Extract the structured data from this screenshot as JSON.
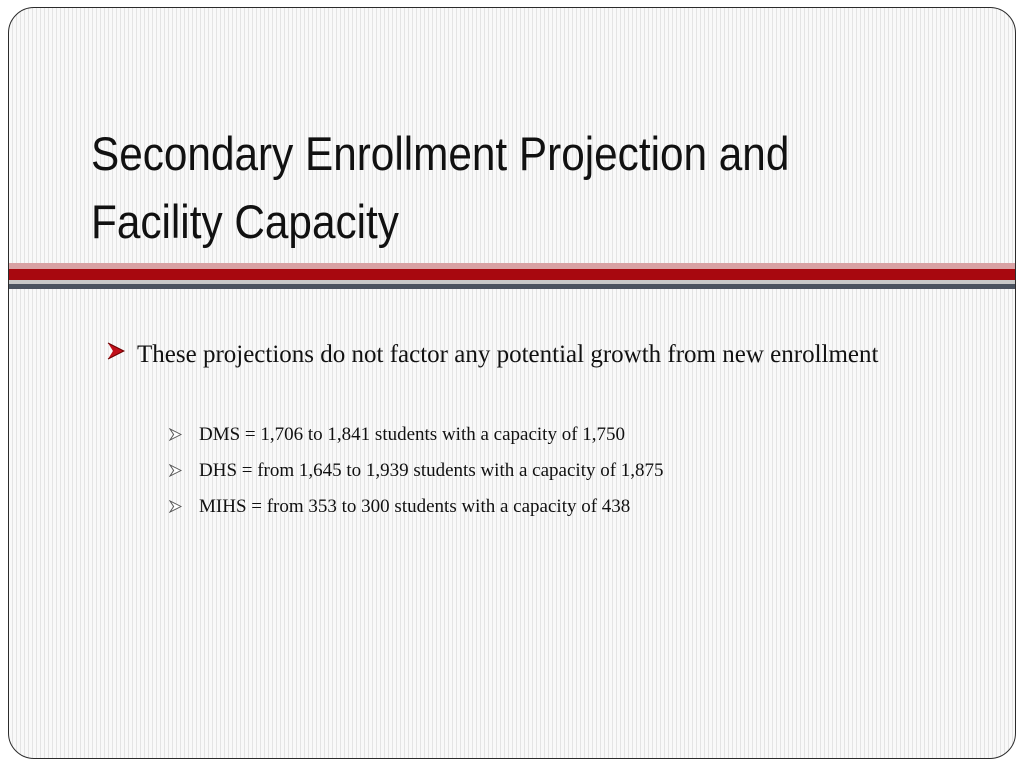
{
  "slide": {
    "title": "Secondary Enrollment Projection and Facility Capacity",
    "bullets": [
      {
        "text": "These projections do not factor any potential growth from new enrollment",
        "icon": "arrow-bullet-icon",
        "sub_bullets": [
          {
            "text": "DMS = 1,706 to 1,841 students with a capacity of 1,750",
            "icon": "arrow-bullet-icon"
          },
          {
            "text": "DHS = from 1,645 to 1,939 students with a capacity of 1,875",
            "icon": "arrow-bullet-icon"
          },
          {
            "text": "MIHS = from 353 to 300 students with a capacity of 438",
            "icon": "arrow-bullet-icon"
          }
        ]
      }
    ]
  },
  "colors": {
    "accent_red": "#a8080f",
    "accent_pink": "#d9a2a4",
    "accent_slate": "#4b5360",
    "bullet_red": "#c0101a",
    "text": "#111111"
  }
}
